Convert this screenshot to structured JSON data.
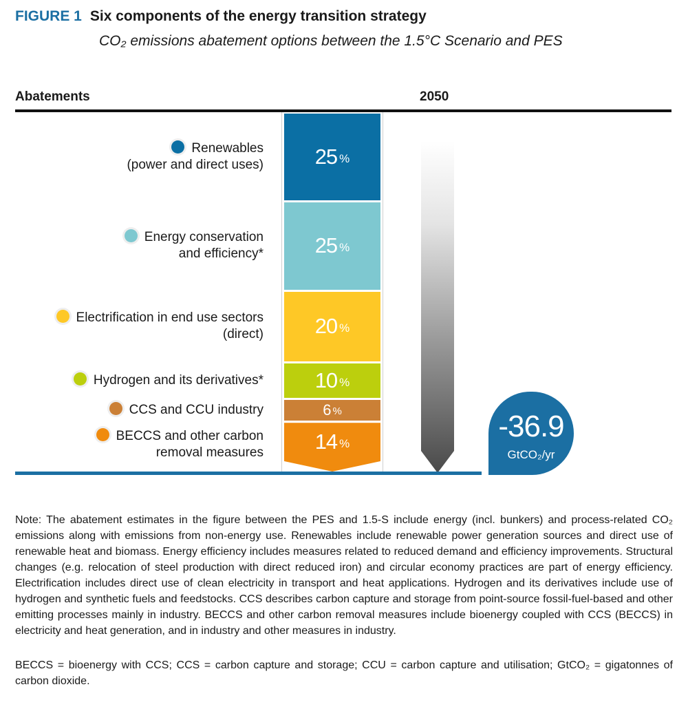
{
  "figure": {
    "label": "FIGURE 1",
    "title": "Six components of the energy transition strategy",
    "subtitle": "CO₂ emissions abatement options between the 1.5°C Scenario and PES"
  },
  "headers": {
    "left": "Abatements",
    "year": "2050"
  },
  "chart_data": {
    "type": "bar",
    "stacked": true,
    "title": "Six components of the energy transition strategy",
    "subtitle": "CO₂ emissions abatement options between the 1.5°C Scenario and PES",
    "xlabel": "2050",
    "ylabel": "Abatements",
    "unit": "%",
    "categories": [
      "Renewables (power and direct uses)",
      "Energy conservation and efficiency*",
      "Electrification in end use sectors (direct)",
      "Hydrogen and its derivatives*",
      "CCS and CCU industry",
      "BECCS and other carbon removal measures"
    ],
    "series": [
      {
        "name": "Renewables",
        "label_lines": [
          "Renewables",
          "(power and direct uses)"
        ],
        "value": 25,
        "color": "#0b6fa4"
      },
      {
        "name": "Energy conservation and efficiency*",
        "label_lines": [
          "Energy conservation",
          "and efficiency*"
        ],
        "value": 25,
        "color": "#7ec8d0"
      },
      {
        "name": "Electrification in end use sectors (direct)",
        "label_lines": [
          "Electrification in end use sectors",
          "(direct)"
        ],
        "value": 20,
        "color": "#fec826"
      },
      {
        "name": "Hydrogen and its derivatives*",
        "label_lines": [
          "Hydrogen and its derivatives*"
        ],
        "value": 10,
        "color": "#bccf0d"
      },
      {
        "name": "CCS and CCU industry",
        "label_lines": [
          "CCS and CCU industry"
        ],
        "value": 6,
        "color": "#cb8036"
      },
      {
        "name": "BECCS and other carbon removal measures",
        "label_lines": [
          "BECCS and other carbon",
          "removal measures"
        ],
        "value": 14,
        "color": "#f08b0e"
      }
    ],
    "total": {
      "value": "-36.9",
      "unit": "GtCO₂/yr",
      "color": "#1b6fa3"
    }
  },
  "notes": {
    "note": "Note: The abatement estimates in the figure between the PES and 1.5-S include energy (incl. bunkers) and process-related CO₂ emissions along with emissions from non-energy use. Renewables include renewable power generation sources and direct use of renewable heat and biomass. Energy efficiency includes measures related to reduced demand and efficiency improvements. Structural changes (e.g. relocation of steel production with direct reduced iron) and circular economy practices are part of energy efficiency. Electrification includes direct use of clean electricity in transport and heat applications. Hydrogen and its derivatives include use of hydrogen and synthetic fuels and feedstocks. CCS describes carbon capture and storage from point-source fossil-fuel-based and other emitting processes mainly in industry. BECCS and other carbon removal measures include bioenergy coupled with CCS (BECCS) in electricity and heat generation, and in industry and other measures in industry.",
    "abbreviations": "BECCS = bioenergy with CCS; CCS = carbon capture and storage; CCU = carbon capture and utilisation; GtCO₂ = gigatonnes of carbon dioxide."
  }
}
